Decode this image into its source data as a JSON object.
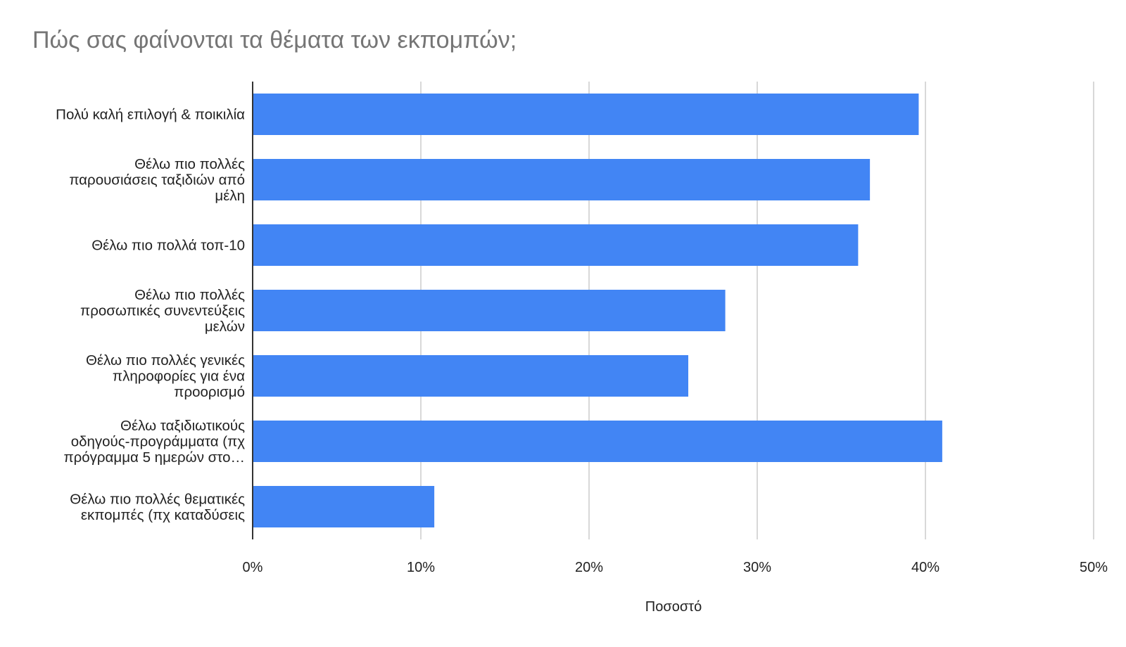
{
  "chart_data": {
    "type": "bar",
    "orientation": "horizontal",
    "title": "Πώς σας φαίνονται τα θέματα των εκπομπών;",
    "xlabel": "Ποσοστό",
    "ylabel": "",
    "xlim": [
      0,
      50
    ],
    "x_ticks": [
      "0%",
      "10%",
      "20%",
      "30%",
      "40%",
      "50%"
    ],
    "grid": "vertical",
    "legend": "none",
    "bar_color": "#4285F4",
    "categories": [
      [
        "Πολύ καλή επιλογή & ποικιλία"
      ],
      [
        "Θέλω πιο πολλές",
        "παρουσιάσεις ταξιδιών από",
        "μέλη"
      ],
      [
        "Θέλω πιο πολλά τοπ-10"
      ],
      [
        "Θέλω πιο πολλές",
        "προσωπικές συνεντεύξεις",
        "μελών"
      ],
      [
        "Θέλω πιο πολλές γενικές",
        "πληροφορίες για ένα",
        "προορισμό"
      ],
      [
        "Θέλω ταξιδιωτικούς",
        "οδηγούς-προγράμματα (πχ",
        "πρόγραμμα 5 ημερών στο…"
      ],
      [
        "Θέλω πιο πολλές θεματικές",
        "εκπομπές (πχ καταδύσεις"
      ]
    ],
    "values": [
      39.6,
      36.7,
      36.0,
      28.1,
      25.9,
      41.0,
      10.8
    ]
  }
}
